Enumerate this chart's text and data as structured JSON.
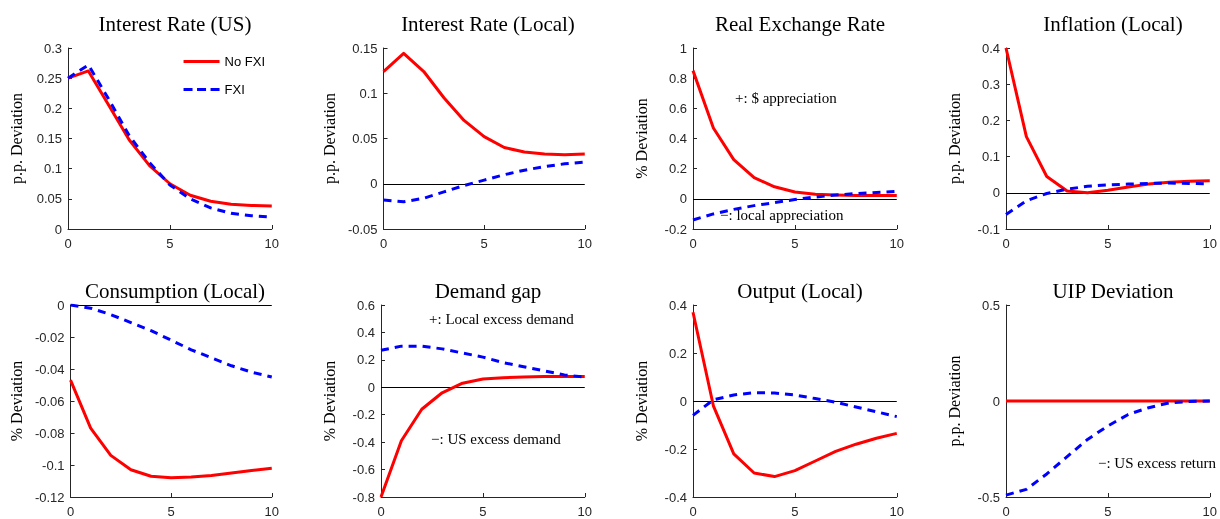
{
  "chart_data": [
    {
      "type": "line",
      "title": "Interest Rate (US)",
      "ylabel": "p.p. Deviation",
      "x": [
        0,
        1,
        2,
        3,
        4,
        5,
        6,
        7,
        8,
        9,
        10
      ],
      "xlim": [
        0,
        10
      ],
      "xticks": [
        0,
        5,
        10
      ],
      "ylim": [
        0,
        0.3
      ],
      "yticks": [
        0,
        0.05,
        0.1,
        0.15,
        0.2,
        0.25,
        0.3
      ],
      "legend": "top right",
      "series": [
        {
          "name": "No FXI",
          "color": "#ff0000",
          "values": [
            0.25,
            0.262,
            0.205,
            0.148,
            0.105,
            0.075,
            0.056,
            0.046,
            0.041,
            0.039,
            0.038
          ]
        },
        {
          "name": "FXI",
          "color": "#0000ff",
          "line_style": "dashed",
          "values": [
            0.25,
            0.272,
            0.215,
            0.155,
            0.11,
            0.073,
            0.05,
            0.035,
            0.026,
            0.022,
            0.02
          ]
        }
      ]
    },
    {
      "type": "line",
      "title": "Interest Rate (Local)",
      "ylabel": "p.p. Deviation",
      "x": [
        0,
        1,
        2,
        3,
        4,
        5,
        6,
        7,
        8,
        9,
        10
      ],
      "xlim": [
        0,
        10
      ],
      "xticks": [
        0,
        5,
        10
      ],
      "ylim": [
        -0.05,
        0.15
      ],
      "yticks": [
        -0.05,
        0,
        0.05,
        0.1,
        0.15
      ],
      "ref_lines": [
        {
          "axis": "y",
          "value": 0,
          "color": "#000000"
        }
      ],
      "series": [
        {
          "color": "#ff0000",
          "values": [
            0.124,
            0.144,
            0.124,
            0.095,
            0.07,
            0.052,
            0.04,
            0.035,
            0.033,
            0.032,
            0.033
          ]
        },
        {
          "color": "#0000ff",
          "line_style": "dashed",
          "values": [
            -0.018,
            -0.02,
            -0.016,
            -0.009,
            -0.002,
            0.004,
            0.01,
            0.015,
            0.019,
            0.022,
            0.024
          ]
        }
      ]
    },
    {
      "type": "line",
      "title": "Real Exchange Rate",
      "ylabel": "% Deviation",
      "x": [
        0,
        1,
        2,
        3,
        4,
        5,
        6,
        7,
        8,
        9,
        10
      ],
      "xlim": [
        0,
        10
      ],
      "xticks": [
        0,
        5,
        10
      ],
      "ylim": [
        -0.2,
        1
      ],
      "yticks": [
        -0.2,
        0,
        0.2,
        0.4,
        0.6,
        0.8,
        1
      ],
      "ref_lines": [
        {
          "axis": "y",
          "value": 0,
          "color": "#000000"
        }
      ],
      "annotations": [
        "+: $ appreciation",
        "−: local appreciation"
      ],
      "series": [
        {
          "color": "#ff0000",
          "values": [
            0.85,
            0.47,
            0.26,
            0.14,
            0.08,
            0.045,
            0.03,
            0.025,
            0.022,
            0.022,
            0.022
          ]
        },
        {
          "color": "#0000ff",
          "line_style": "dashed",
          "values": [
            -0.14,
            -0.1,
            -0.07,
            -0.045,
            -0.025,
            -0.005,
            0.012,
            0.025,
            0.035,
            0.042,
            0.05
          ]
        }
      ]
    },
    {
      "type": "line",
      "title": "Inflation (Local)",
      "ylabel": "p.p. Deviation",
      "x": [
        0,
        1,
        2,
        3,
        4,
        5,
        6,
        7,
        8,
        9,
        10
      ],
      "xlim": [
        0,
        10
      ],
      "xticks": [
        0,
        5,
        10
      ],
      "ylim": [
        -0.1,
        0.4
      ],
      "yticks": [
        -0.1,
        0,
        0.1,
        0.2,
        0.3,
        0.4
      ],
      "ref_lines": [
        {
          "axis": "y",
          "value": 0,
          "color": "#000000"
        }
      ],
      "series": [
        {
          "color": "#ff0000",
          "values": [
            0.4,
            0.155,
            0.045,
            0.005,
            0,
            0.007,
            0.016,
            0.024,
            0.029,
            0.032,
            0.033
          ]
        },
        {
          "color": "#0000ff",
          "line_style": "dashed",
          "values": [
            -0.06,
            -0.022,
            -0.002,
            0.01,
            0.018,
            0.022,
            0.024,
            0.026,
            0.027,
            0.026,
            0.025
          ]
        }
      ]
    },
    {
      "type": "line",
      "title": "Consumption (Local)",
      "ylabel": "% Deviation",
      "x": [
        0,
        1,
        2,
        3,
        4,
        5,
        6,
        7,
        8,
        9,
        10
      ],
      "xlim": [
        0,
        10
      ],
      "xticks": [
        0,
        5,
        10
      ],
      "ylim": [
        -0.12,
        0
      ],
      "yticks": [
        -0.12,
        -0.1,
        -0.08,
        -0.06,
        -0.04,
        -0.02,
        0
      ],
      "ref_lines": [
        {
          "axis": "y",
          "value": 0,
          "color": "#000000"
        }
      ],
      "series": [
        {
          "color": "#ff0000",
          "values": [
            -0.047,
            -0.077,
            -0.094,
            -0.103,
            -0.107,
            -0.108,
            -0.1075,
            -0.1065,
            -0.105,
            -0.1035,
            -0.102
          ]
        },
        {
          "color": "#0000ff",
          "line_style": "dashed",
          "values": [
            0,
            -0.002,
            -0.006,
            -0.011,
            -0.016,
            -0.022,
            -0.028,
            -0.033,
            -0.038,
            -0.042,
            -0.045
          ]
        }
      ]
    },
    {
      "type": "line",
      "title": "Demand gap",
      "ylabel": "% Deviation",
      "x": [
        0,
        1,
        2,
        3,
        4,
        5,
        6,
        7,
        8,
        9,
        10
      ],
      "xlim": [
        0,
        10
      ],
      "xticks": [
        0,
        5,
        10
      ],
      "ylim": [
        -0.8,
        0.6
      ],
      "yticks": [
        -0.8,
        -0.6,
        -0.4,
        -0.2,
        0,
        0.2,
        0.4,
        0.6
      ],
      "ref_lines": [
        {
          "axis": "y",
          "value": 0,
          "color": "#000000"
        }
      ],
      "annotations": [
        "+: Local excess demand",
        "−: US excess demand"
      ],
      "series": [
        {
          "color": "#ff0000",
          "values": [
            -0.8,
            -0.39,
            -0.16,
            -0.04,
            0.03,
            0.06,
            0.07,
            0.075,
            0.078,
            0.078,
            0.078
          ]
        },
        {
          "color": "#0000ff",
          "line_style": "dashed",
          "values": [
            0.27,
            0.3,
            0.3,
            0.28,
            0.25,
            0.22,
            0.18,
            0.15,
            0.12,
            0.09,
            0.075
          ]
        }
      ]
    },
    {
      "type": "line",
      "title": "Output (Local)",
      "ylabel": "% Deviation",
      "x": [
        0,
        1,
        2,
        3,
        4,
        5,
        6,
        7,
        8,
        9,
        10
      ],
      "xlim": [
        0,
        10
      ],
      "xticks": [
        0,
        5,
        10
      ],
      "ylim": [
        -0.4,
        0.4
      ],
      "yticks": [
        -0.4,
        -0.2,
        0,
        0.2,
        0.4
      ],
      "ref_lines": [
        {
          "axis": "y",
          "value": 0,
          "color": "#000000"
        }
      ],
      "series": [
        {
          "color": "#ff0000",
          "values": [
            0.37,
            -0.02,
            -0.22,
            -0.3,
            -0.315,
            -0.29,
            -0.25,
            -0.21,
            -0.18,
            -0.155,
            -0.135
          ]
        },
        {
          "color": "#0000ff",
          "line_style": "dashed",
          "values": [
            -0.06,
            0.005,
            0.025,
            0.035,
            0.033,
            0.025,
            0.01,
            -0.005,
            -0.025,
            -0.045,
            -0.065
          ]
        }
      ]
    },
    {
      "type": "line",
      "title": "UIP Deviation",
      "ylabel": "p.p. Deviation",
      "x": [
        0,
        1,
        2,
        3,
        4,
        5,
        6,
        7,
        8,
        9,
        10
      ],
      "xlim": [
        0,
        10
      ],
      "xticks": [
        0,
        5,
        10
      ],
      "ylim": [
        -0.5,
        0.5
      ],
      "yticks": [
        -0.5,
        0,
        0.5
      ],
      "annotations": [
        "−: US excess return"
      ],
      "series": [
        {
          "color": "#ff0000",
          "values": [
            0,
            0,
            0,
            0,
            0,
            0,
            0,
            0,
            0,
            0,
            0
          ]
        },
        {
          "color": "#0000ff",
          "line_style": "dashed",
          "values": [
            -0.49,
            -0.46,
            -0.38,
            -0.29,
            -0.2,
            -0.13,
            -0.07,
            -0.035,
            -0.01,
            -0.003,
            0
          ]
        }
      ]
    }
  ]
}
